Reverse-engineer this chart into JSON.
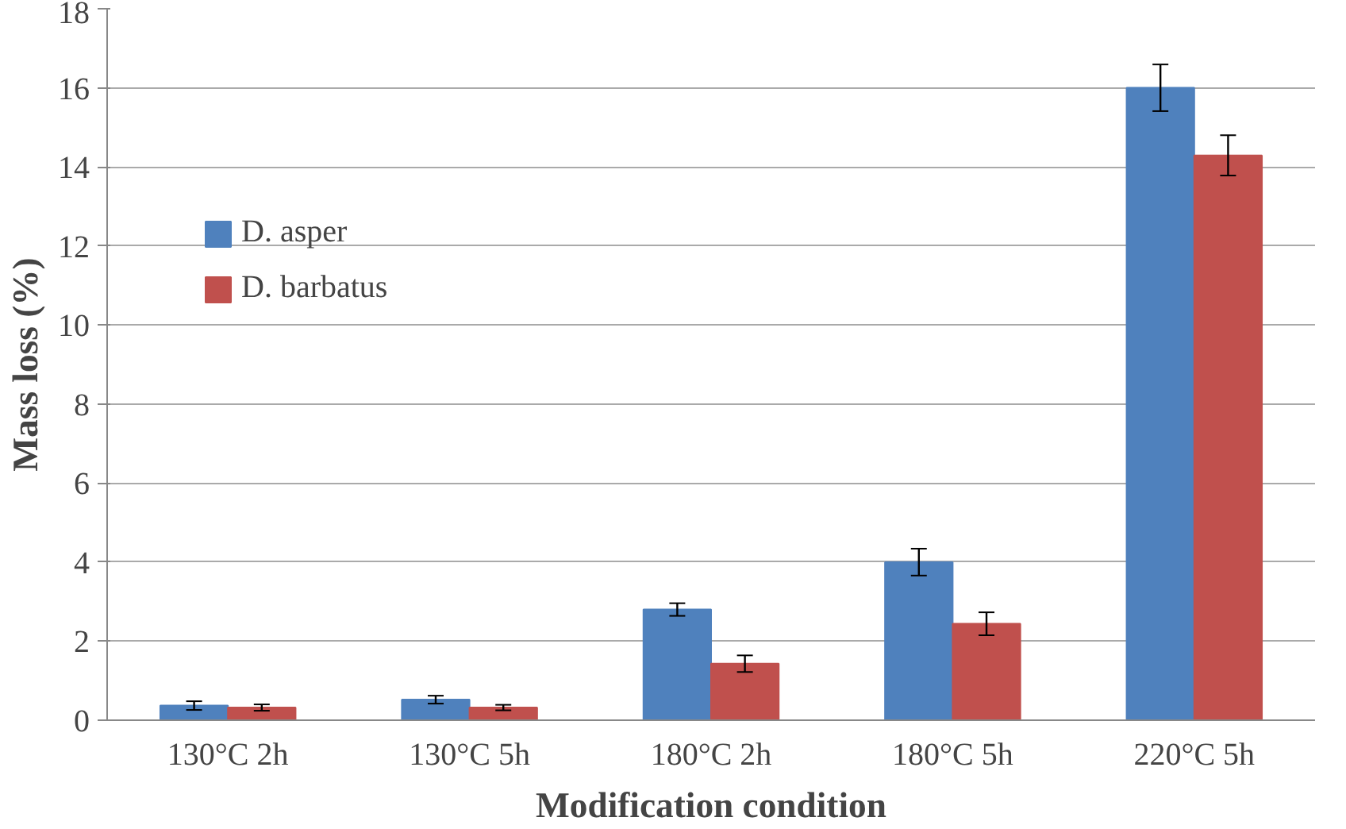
{
  "chart_data": {
    "type": "bar",
    "xlabel": "Modification condition",
    "ylabel": "Mass loss (%)",
    "categories": [
      "130°C 2h",
      "130°C 5h",
      "180°C 2h",
      "180°C 5h",
      "220°C 5h"
    ],
    "series": [
      {
        "name": "D. asper",
        "color": "#4f81bd",
        "values": [
          0.37,
          0.52,
          2.8,
          4.0,
          16.0
        ],
        "errors": [
          0.11,
          0.1,
          0.16,
          0.34,
          0.59
        ]
      },
      {
        "name": "D. barbatus",
        "color": "#c0504d",
        "values": [
          0.32,
          0.32,
          1.43,
          2.44,
          14.29
        ],
        "errors": [
          0.08,
          0.07,
          0.21,
          0.29,
          0.51
        ]
      }
    ],
    "ylim": [
      0,
      18
    ],
    "yticks": [
      0,
      2,
      4,
      6,
      8,
      10,
      12,
      14,
      16,
      18
    ],
    "grid": "y",
    "legend": "top left"
  }
}
